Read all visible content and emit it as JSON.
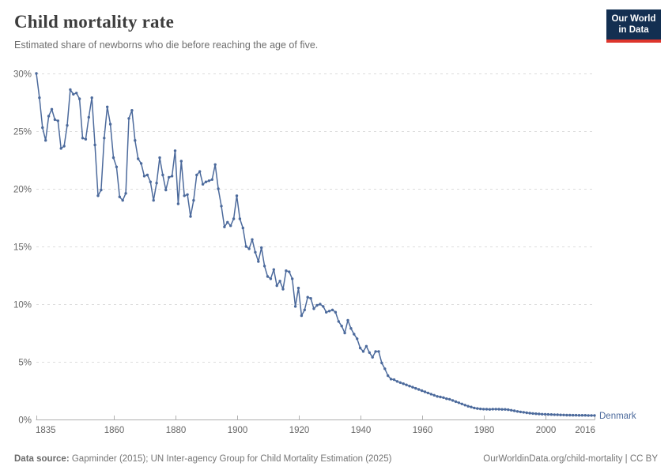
{
  "header": {
    "title": "Child mortality rate",
    "subtitle": "Estimated share of newborns who die before reaching the age of five.",
    "logo": {
      "line1": "Our World",
      "line2": "in Data",
      "bg": "#132f51",
      "accent": "#dd352c"
    }
  },
  "chart_data": {
    "type": "line",
    "title": "Child mortality rate",
    "series": [
      {
        "name": "Denmark",
        "color": "#4C6A9C"
      }
    ],
    "series_label": "Denmark",
    "xlabel": "",
    "ylabel": "",
    "xlim": [
      1835,
      2016
    ],
    "ylim": [
      0,
      30
    ],
    "x_ticks": [
      1835,
      1860,
      1880,
      1900,
      1920,
      1940,
      1960,
      1980,
      2000,
      2016
    ],
    "y_ticks": [
      0,
      5,
      10,
      15,
      20,
      25,
      30
    ],
    "y_tick_suffix": "%",
    "grid": "horizontal-dashed",
    "legend_position": "end-of-line",
    "colors": {
      "line": "#4C6A9C",
      "grid": "#dcdcdc",
      "axis": "#b0b0b0",
      "tick_text": "#666666"
    },
    "points": [
      [
        1835,
        30
      ],
      [
        1836,
        27.9
      ],
      [
        1837,
        25.3
      ],
      [
        1838,
        24.2
      ],
      [
        1839,
        26.3
      ],
      [
        1840,
        26.9
      ],
      [
        1841,
        26
      ],
      [
        1842,
        25.9
      ],
      [
        1843,
        23.5
      ],
      [
        1844,
        23.7
      ],
      [
        1845,
        25.5
      ],
      [
        1846,
        28.6
      ],
      [
        1847,
        28.2
      ],
      [
        1848,
        28.3
      ],
      [
        1849,
        27.8
      ],
      [
        1850,
        24.4
      ],
      [
        1851,
        24.3
      ],
      [
        1852,
        26.2
      ],
      [
        1853,
        27.9
      ],
      [
        1854,
        23.8
      ],
      [
        1855,
        19.4
      ],
      [
        1856,
        19.9
      ],
      [
        1857,
        24.4
      ],
      [
        1858,
        27.1
      ],
      [
        1859,
        25.6
      ],
      [
        1860,
        22.7
      ],
      [
        1861,
        21.9
      ],
      [
        1862,
        19.3
      ],
      [
        1863,
        19
      ],
      [
        1864,
        19.6
      ],
      [
        1865,
        26.1
      ],
      [
        1866,
        26.8
      ],
      [
        1867,
        24.2
      ],
      [
        1868,
        22.6
      ],
      [
        1869,
        22.2
      ],
      [
        1870,
        21.1
      ],
      [
        1871,
        21.2
      ],
      [
        1872,
        20.6
      ],
      [
        1873,
        19
      ],
      [
        1874,
        20.5
      ],
      [
        1875,
        22.7
      ],
      [
        1876,
        21.2
      ],
      [
        1877,
        19.9
      ],
      [
        1878,
        21
      ],
      [
        1879,
        21.1
      ],
      [
        1880,
        23.3
      ],
      [
        1881,
        18.7
      ],
      [
        1882,
        22.4
      ],
      [
        1883,
        19.4
      ],
      [
        1884,
        19.5
      ],
      [
        1885,
        17.6
      ],
      [
        1886,
        19
      ],
      [
        1887,
        21.2
      ],
      [
        1888,
        21.5
      ],
      [
        1889,
        20.4
      ],
      [
        1890,
        20.6
      ],
      [
        1891,
        20.7
      ],
      [
        1892,
        20.8
      ],
      [
        1893,
        22.1
      ],
      [
        1894,
        20
      ],
      [
        1895,
        18.5
      ],
      [
        1896,
        16.7
      ],
      [
        1897,
        17.1
      ],
      [
        1898,
        16.8
      ],
      [
        1899,
        17.4
      ],
      [
        1900,
        19.4
      ],
      [
        1901,
        17.4
      ],
      [
        1902,
        16.6
      ],
      [
        1903,
        15
      ],
      [
        1904,
        14.8
      ],
      [
        1905,
        15.6
      ],
      [
        1906,
        14.5
      ],
      [
        1907,
        13.7
      ],
      [
        1908,
        14.9
      ],
      [
        1909,
        13.3
      ],
      [
        1910,
        12.4
      ],
      [
        1911,
        12.2
      ],
      [
        1912,
        13
      ],
      [
        1913,
        11.6
      ],
      [
        1914,
        12
      ],
      [
        1915,
        11.3
      ],
      [
        1916,
        12.9
      ],
      [
        1917,
        12.8
      ],
      [
        1918,
        12.2
      ],
      [
        1919,
        9.8
      ],
      [
        1920,
        11.4
      ],
      [
        1921,
        9
      ],
      [
        1922,
        9.5
      ],
      [
        1923,
        10.6
      ],
      [
        1924,
        10.5
      ],
      [
        1925,
        9.6
      ],
      [
        1926,
        9.9
      ],
      [
        1927,
        10
      ],
      [
        1928,
        9.8
      ],
      [
        1929,
        9.3
      ],
      [
        1930,
        9.4
      ],
      [
        1931,
        9.5
      ],
      [
        1932,
        9.3
      ],
      [
        1933,
        8.5
      ],
      [
        1934,
        8.1
      ],
      [
        1935,
        7.5
      ],
      [
        1936,
        8.6
      ],
      [
        1937,
        7.9
      ],
      [
        1938,
        7.4
      ],
      [
        1939,
        7
      ],
      [
        1940,
        6.2
      ],
      [
        1941,
        5.9
      ],
      [
        1942,
        6.35
      ],
      [
        1943,
        5.8
      ],
      [
        1944,
        5.4
      ],
      [
        1945,
        5.9
      ],
      [
        1946,
        5.9
      ],
      [
        1947,
        4.9
      ],
      [
        1948,
        4.4
      ],
      [
        1949,
        3.8
      ],
      [
        1950,
        3.5
      ],
      [
        1951,
        3.45
      ],
      [
        1952,
        3.3
      ],
      [
        1953,
        3.2
      ],
      [
        1954,
        3.1
      ],
      [
        1955,
        3
      ],
      [
        1956,
        2.9
      ],
      [
        1957,
        2.8
      ],
      [
        1958,
        2.7
      ],
      [
        1959,
        2.6
      ],
      [
        1960,
        2.5
      ],
      [
        1961,
        2.4
      ],
      [
        1962,
        2.3
      ],
      [
        1963,
        2.2
      ],
      [
        1964,
        2.1
      ],
      [
        1965,
        2
      ],
      [
        1966,
        1.95
      ],
      [
        1967,
        1.9
      ],
      [
        1968,
        1.8
      ],
      [
        1969,
        1.75
      ],
      [
        1970,
        1.65
      ],
      [
        1971,
        1.55
      ],
      [
        1972,
        1.45
      ],
      [
        1973,
        1.35
      ],
      [
        1974,
        1.25
      ],
      [
        1975,
        1.15
      ],
      [
        1976,
        1.08
      ],
      [
        1977,
        1
      ],
      [
        1978,
        0.95
      ],
      [
        1979,
        0.92
      ],
      [
        1980,
        0.9
      ],
      [
        1981,
        0.89
      ],
      [
        1982,
        0.88
      ],
      [
        1983,
        0.9
      ],
      [
        1984,
        0.9
      ],
      [
        1985,
        0.89
      ],
      [
        1986,
        0.88
      ],
      [
        1987,
        0.88
      ],
      [
        1988,
        0.85
      ],
      [
        1989,
        0.8
      ],
      [
        1990,
        0.75
      ],
      [
        1991,
        0.7
      ],
      [
        1992,
        0.66
      ],
      [
        1993,
        0.62
      ],
      [
        1994,
        0.58
      ],
      [
        1995,
        0.55
      ],
      [
        1996,
        0.52
      ],
      [
        1997,
        0.5
      ],
      [
        1998,
        0.48
      ],
      [
        1999,
        0.46
      ],
      [
        2000,
        0.45
      ],
      [
        2001,
        0.44
      ],
      [
        2002,
        0.43
      ],
      [
        2003,
        0.42
      ],
      [
        2004,
        0.41
      ],
      [
        2005,
        0.4
      ],
      [
        2006,
        0.39
      ],
      [
        2007,
        0.38
      ],
      [
        2008,
        0.38
      ],
      [
        2009,
        0.37
      ],
      [
        2010,
        0.37
      ],
      [
        2011,
        0.36
      ],
      [
        2012,
        0.36
      ],
      [
        2013,
        0.36
      ],
      [
        2014,
        0.35
      ],
      [
        2015,
        0.35
      ],
      [
        2016,
        0.35
      ]
    ]
  },
  "footer": {
    "source_label": "Data source:",
    "source_text": " Gapminder (2015); UN Inter-agency Group for Child Mortality Estimation (2025)",
    "right_text": "OurWorldinData.org/child-mortality | CC BY"
  }
}
